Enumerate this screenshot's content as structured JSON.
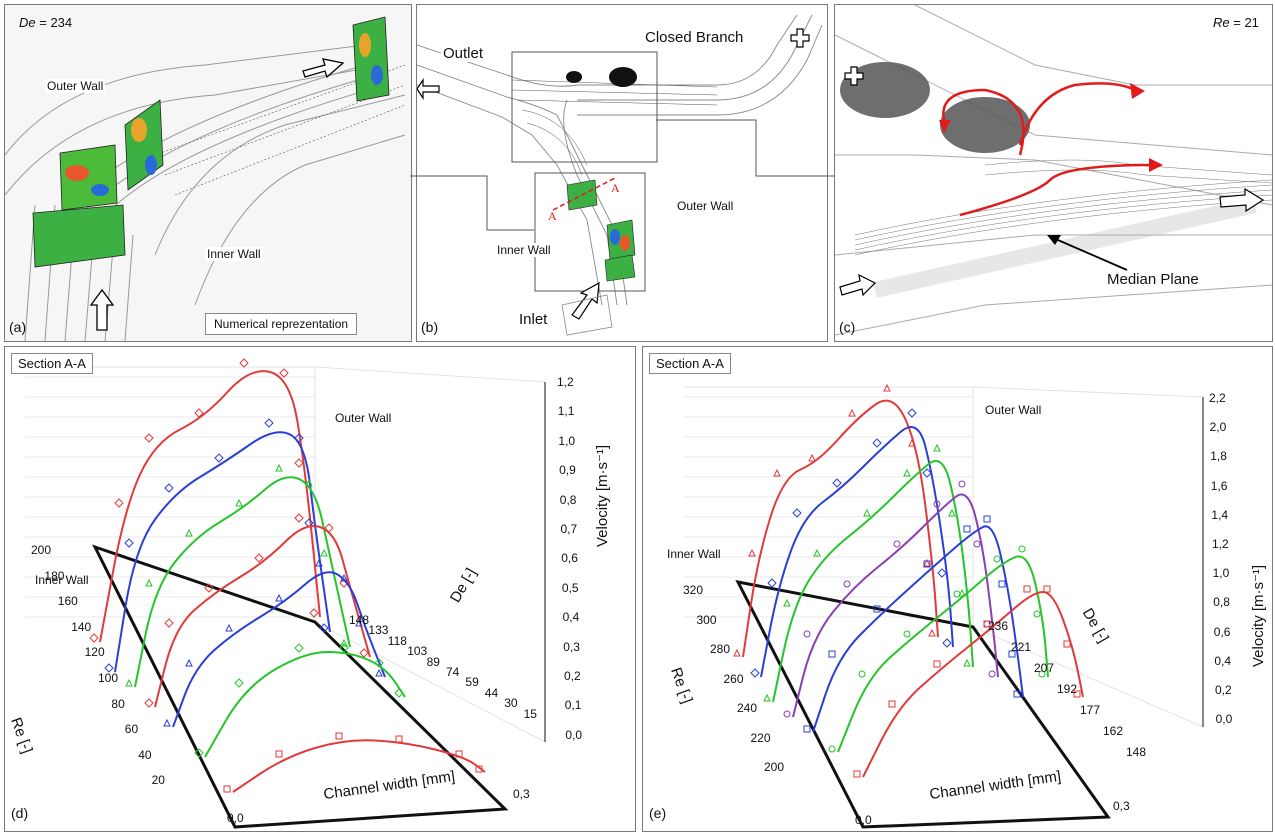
{
  "panel_a": {
    "letter": "(a)",
    "de_label": "De",
    "de_value": "= 234",
    "outer_wall": "Outer Wall",
    "inner_wall": "Inner Wall",
    "caption": "Numerical reprezentation"
  },
  "panel_b": {
    "letter": "(b)",
    "outlet": "Outlet",
    "closed_branch": "Closed Branch",
    "outer_wall": "Outer Wall",
    "inner_wall": "Inner Wall",
    "inlet": "Inlet",
    "section_mark": "A"
  },
  "panel_c": {
    "letter": "(c)",
    "re_label": "Re",
    "re_value": "= 21",
    "median_plane": "Median Plane"
  },
  "panel_d": {
    "letter": "(d)",
    "section": "Section A-A",
    "outer_wall": "Outer Wall",
    "inner_wall": "Inner Wall",
    "velocity_label": "Velocity [m·s⁻¹]",
    "velocity_ticks": [
      "1,2",
      "1,1",
      "1,0",
      "0,9",
      "0,8",
      "0,7",
      "0,6",
      "0,5",
      "0,4",
      "0,3",
      "0,2",
      "0,1",
      "0,0"
    ],
    "de_label": "De [-]",
    "de_ticks": [
      "148",
      "133",
      "118",
      "103",
      "89",
      "74",
      "59",
      "44",
      "30",
      "15"
    ],
    "re_label": "Re [-]",
    "re_ticks": [
      "200",
      "180",
      "160",
      "140",
      "120",
      "100",
      "80",
      "60",
      "40",
      "20"
    ],
    "width_label": "Channel width [mm]",
    "width_ticks": [
      "0,0",
      "0,3"
    ]
  },
  "panel_e": {
    "letter": "(e)",
    "section": "Section A-A",
    "outer_wall": "Outer Wall",
    "inner_wall": "Inner Wall",
    "velocity_label": "Velocity [m·s⁻¹]",
    "velocity_ticks": [
      "2,2",
      "2,0",
      "1,8",
      "1,6",
      "1,4",
      "1,2",
      "1,0",
      "0,8",
      "0,6",
      "0,4",
      "0,2",
      "0,0"
    ],
    "de_label": "De [-]",
    "de_ticks": [
      "236",
      "221",
      "207",
      "192",
      "177",
      "162",
      "148"
    ],
    "re_label": "Re [-]",
    "re_ticks": [
      "320",
      "300",
      "280",
      "260",
      "240",
      "220",
      "200"
    ],
    "width_label": "Channel width [mm]",
    "width_ticks": [
      "0,0",
      "0,3"
    ]
  },
  "colors": {
    "red": "#e03a3a",
    "blue": "#2a3fd6",
    "green": "#25c42b",
    "purple": "#8a3fb0",
    "arrow_red": "#e01b1b",
    "contour_green": "#3cb043"
  }
}
